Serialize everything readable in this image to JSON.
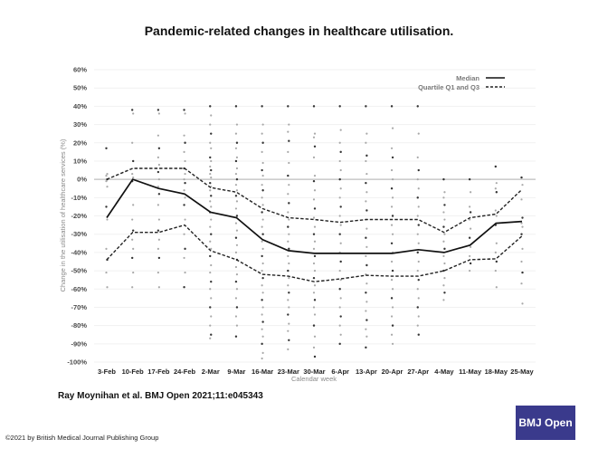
{
  "slide": {
    "title": "Pandemic-related changes in healthcare utilisation.",
    "citation": "Ray Moynihan et al. BMJ Open 2021;11:e045343",
    "copyright": "©2021 by British Medical Journal Publishing Group",
    "logo": "BMJ Open",
    "logo_color": "#3a3a8c"
  },
  "chart_data": {
    "type": "line",
    "title": "Pandemic-related changes in healthcare utilisation.",
    "xlabel": "Calendar week",
    "ylabel": "Change in the utilisation of healthcare services (%)",
    "ylim": [
      -100,
      60
    ],
    "yticks": [
      60,
      50,
      40,
      30,
      20,
      10,
      0,
      -10,
      -20,
      -30,
      -40,
      -50,
      -60,
      -70,
      -80,
      -90,
      -100
    ],
    "ytick_labels": [
      "60%",
      "50%",
      "40%",
      "30%",
      "20%",
      "10%",
      "0%",
      "-10%",
      "-20%",
      "-30%",
      "-40%",
      "-50%",
      "-60%",
      "-70%",
      "-80%",
      "-90%",
      "-100%"
    ],
    "grid": true,
    "legend_position": "top-right",
    "categories": [
      "3-Feb",
      "10-Feb",
      "17-Feb",
      "24-Feb",
      "2-Mar",
      "9-Mar",
      "16-Mar",
      "23-Mar",
      "30-Mar",
      "6-Apr",
      "13-Apr",
      "20-Apr",
      "27-Apr",
      "4-May",
      "11-May",
      "18-May",
      "25-May"
    ],
    "series": [
      {
        "name": "Median",
        "style": "solid",
        "color": "#111111",
        "values": [
          -21,
          0,
          -5,
          -8,
          -18,
          -21,
          -33,
          -39,
          -40.5,
          -40.5,
          -40.5,
          -40.5,
          -38.5,
          -40,
          -36,
          -24,
          -23
        ]
      },
      {
        "name": "Quartile Q1 and Q3",
        "style": "dashed",
        "color": "#222222",
        "part": "Q3",
        "values": [
          0,
          6,
          6,
          6,
          -4.5,
          -7,
          -16,
          -21,
          -22,
          -23.5,
          -22,
          -22,
          -22,
          -29,
          -21,
          -19,
          -5.5
        ]
      },
      {
        "name": "Quartile Q1 and Q3",
        "style": "dashed",
        "color": "#222222",
        "part": "Q1",
        "values": [
          -44,
          -29,
          -29,
          -25,
          -39,
          -44,
          -52,
          -53,
          -56,
          -54.5,
          -52.5,
          -53,
          -53,
          -50,
          -44,
          -43.5,
          -31
        ]
      }
    ],
    "legend": [
      {
        "label": "Median",
        "style": "solid"
      },
      {
        "label": "Quartile Q1 and Q3",
        "style": "dashed"
      }
    ],
    "scatter": [
      [
        17,
        3,
        2,
        0,
        -1,
        -4,
        -15,
        -22,
        -38,
        -44,
        -51,
        -59
      ],
      [
        38,
        36,
        20,
        10,
        3,
        1,
        -1,
        -14,
        -22,
        -28,
        -33,
        -38,
        -43,
        -51,
        -59
      ],
      [
        38,
        36,
        24,
        17,
        12,
        8,
        4,
        0,
        -4,
        -8,
        -14,
        -22,
        -28,
        -33,
        -38,
        -43,
        -51,
        -59
      ],
      [
        38,
        36,
        24,
        20,
        15,
        10,
        6,
        3,
        0,
        -2,
        -6,
        -10,
        -14,
        -22,
        -30,
        -38,
        -43,
        -51,
        -59
      ],
      [
        40,
        35,
        30,
        25,
        20,
        17,
        12,
        10,
        7,
        5,
        3,
        1,
        -2,
        -4,
        -6,
        -9,
        -12,
        -15,
        -18,
        -22,
        -26,
        -30,
        -34,
        -38,
        -42,
        -47,
        -51,
        -56,
        -60,
        -65,
        -70,
        -75,
        -80,
        -85,
        -87
      ],
      [
        40,
        30,
        25,
        20,
        17,
        12,
        10,
        6,
        3,
        0,
        -3,
        -6,
        -9,
        -12,
        -16,
        -20,
        -24,
        -28,
        -32,
        -36,
        -40,
        -44,
        -48,
        -52,
        -56,
        -60,
        -65,
        -70,
        -75,
        -80,
        -86
      ],
      [
        40,
        30,
        25,
        20,
        15,
        9,
        5,
        2,
        -3,
        -6,
        -10,
        -14,
        -18,
        -22,
        -26,
        -30,
        -34,
        -38,
        -42,
        -46,
        -50,
        -54,
        -58,
        -62,
        -66,
        -70,
        -74,
        -78,
        -82,
        -86,
        -90,
        -95,
        -98
      ],
      [
        40,
        30,
        26,
        21,
        15,
        9,
        2,
        -3,
        -8,
        -13,
        -18,
        -22,
        -26,
        -30,
        -34,
        -38,
        -42,
        -46,
        -50,
        -54,
        -58,
        -62,
        -66,
        -70,
        -74,
        -79,
        -83,
        -88,
        -93
      ],
      [
        40,
        25,
        23,
        18,
        12,
        2,
        -1,
        -6,
        -11,
        -16,
        -21,
        -26,
        -30,
        -34,
        -38,
        -42,
        -46,
        -50,
        -54,
        -58,
        -62,
        -66,
        -70,
        -74,
        -80,
        -86,
        -92,
        -97
      ],
      [
        40,
        27,
        20,
        15,
        10,
        5,
        0,
        -5,
        -10,
        -15,
        -20,
        -25,
        -30,
        -35,
        -40,
        -45,
        -50,
        -55,
        -60,
        -65,
        -70,
        -75,
        -80,
        -85,
        -90
      ],
      [
        40,
        25,
        20,
        13,
        10,
        3,
        -2,
        -7,
        -12,
        -17,
        -22,
        -27,
        -32,
        -37,
        -42,
        -47,
        -52,
        -57,
        -62,
        -67,
        -72,
        -77,
        -82,
        -86,
        -92
      ],
      [
        40,
        28,
        17,
        12,
        5,
        0,
        -5,
        -10,
        -15,
        -20,
        -25,
        -30,
        -35,
        -40,
        -45,
        -50,
        -55,
        -60,
        -65,
        -70,
        -75,
        -80,
        -85,
        -90
      ],
      [
        40,
        25,
        12,
        5,
        0,
        -5,
        -10,
        -15,
        -20,
        -25,
        -30,
        -35,
        -40,
        -45,
        -50,
        -55,
        -60,
        -65,
        -70,
        -75,
        -80,
        -85
      ],
      [
        0,
        -7,
        -10,
        -14,
        -18,
        -22,
        -26,
        -30,
        -34,
        -38,
        -42,
        -46,
        -50,
        -54,
        -58,
        -62,
        -66
      ],
      [
        0,
        -7,
        -15,
        -18,
        -22,
        -27,
        -32,
        -37,
        -42,
        -46,
        -50
      ],
      [
        7,
        -2,
        -5,
        -7,
        -17,
        -20,
        -25,
        -35,
        -40,
        -45,
        -50,
        -59
      ],
      [
        1,
        -3,
        -11,
        -21,
        -24,
        -26,
        -30,
        -38,
        -45,
        -51,
        -57,
        -68
      ]
    ]
  }
}
